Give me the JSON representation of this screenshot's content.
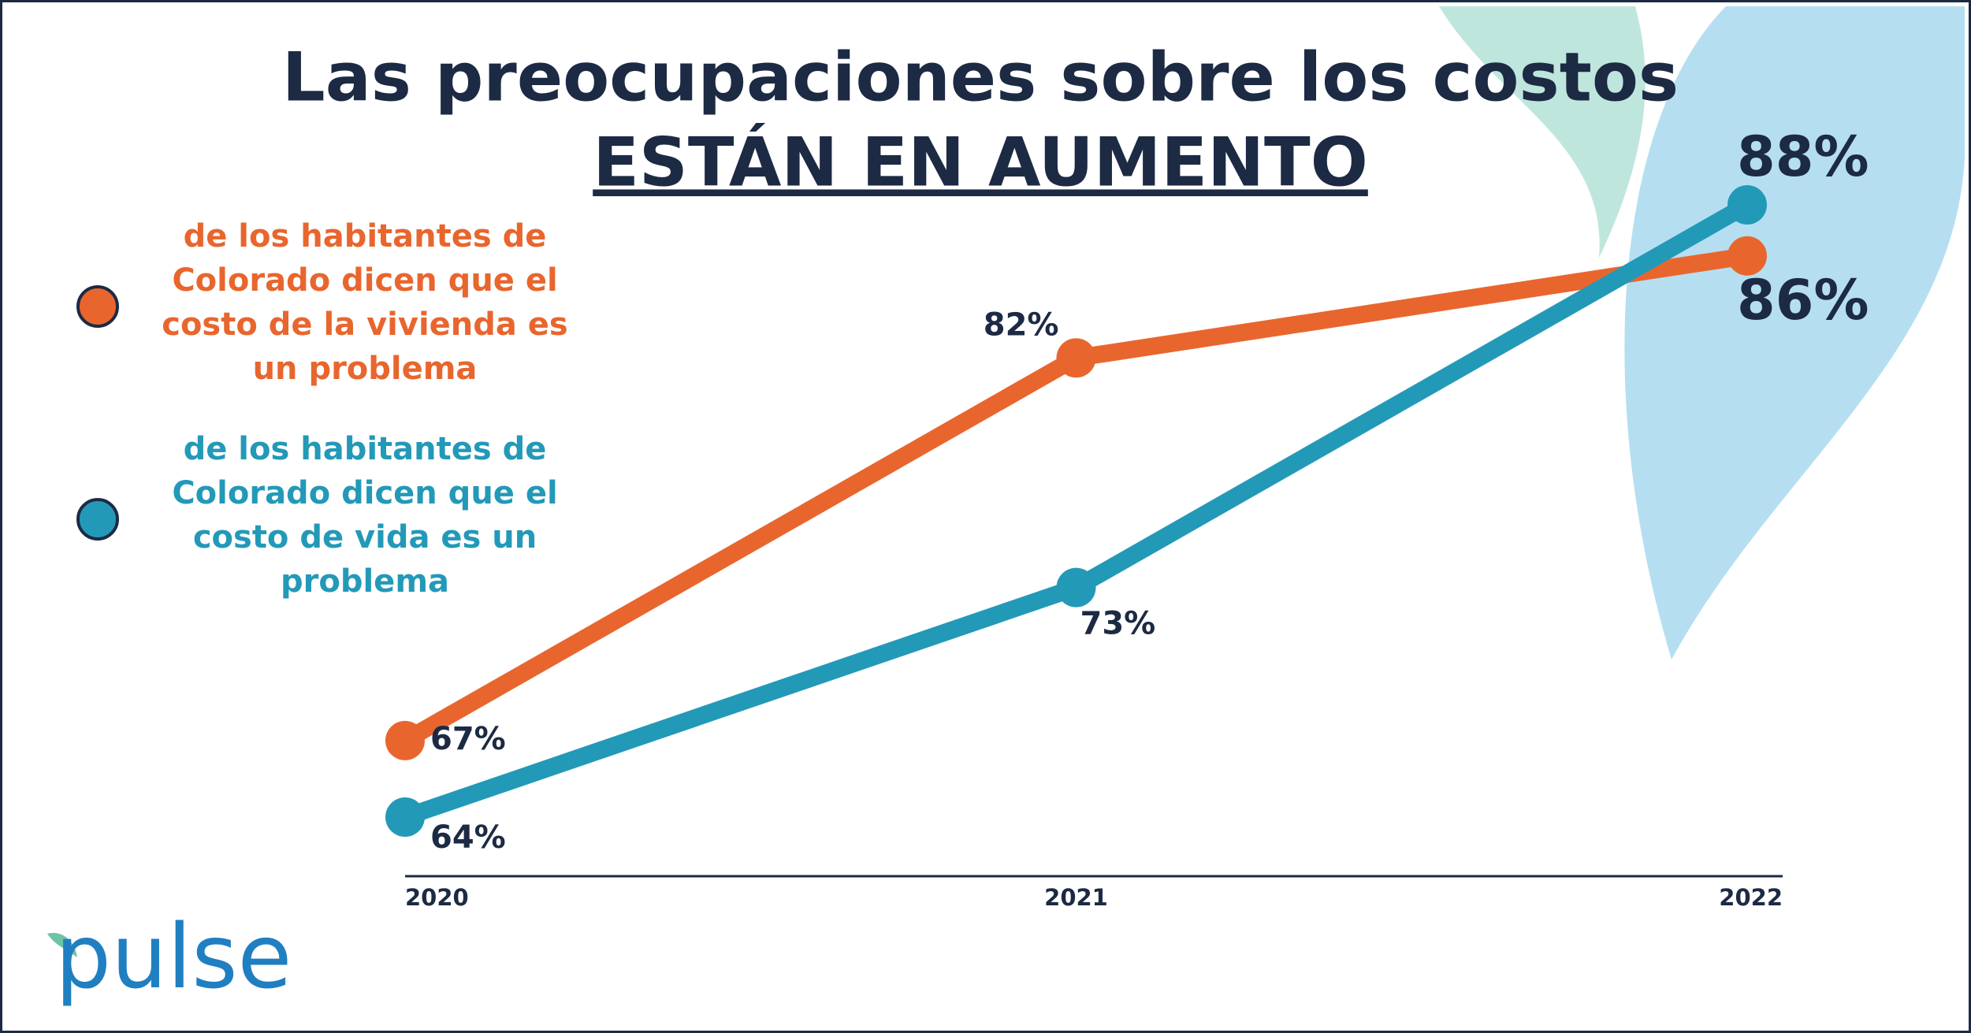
{
  "chart_data": {
    "type": "line",
    "title": "Las preocupaciones sobre los costos",
    "subtitle": "ESTÁN EN AUMENTO",
    "categories": [
      "2020",
      "2021",
      "2022"
    ],
    "series": [
      {
        "name": "de los habitantes de Colorado dicen que el costo de la vivienda es un problema",
        "color": "#e8662e",
        "values": [
          67,
          82,
          86
        ],
        "value_labels": [
          "67%",
          "82%",
          "86%"
        ]
      },
      {
        "name": "de los habitantes de Colorado dicen que el costo de vida es un problema",
        "color": "#2399b8",
        "values": [
          64,
          73,
          88
        ],
        "value_labels": [
          "64%",
          "73%",
          "88%"
        ]
      }
    ]
  },
  "logo": {
    "text": "pulse"
  }
}
